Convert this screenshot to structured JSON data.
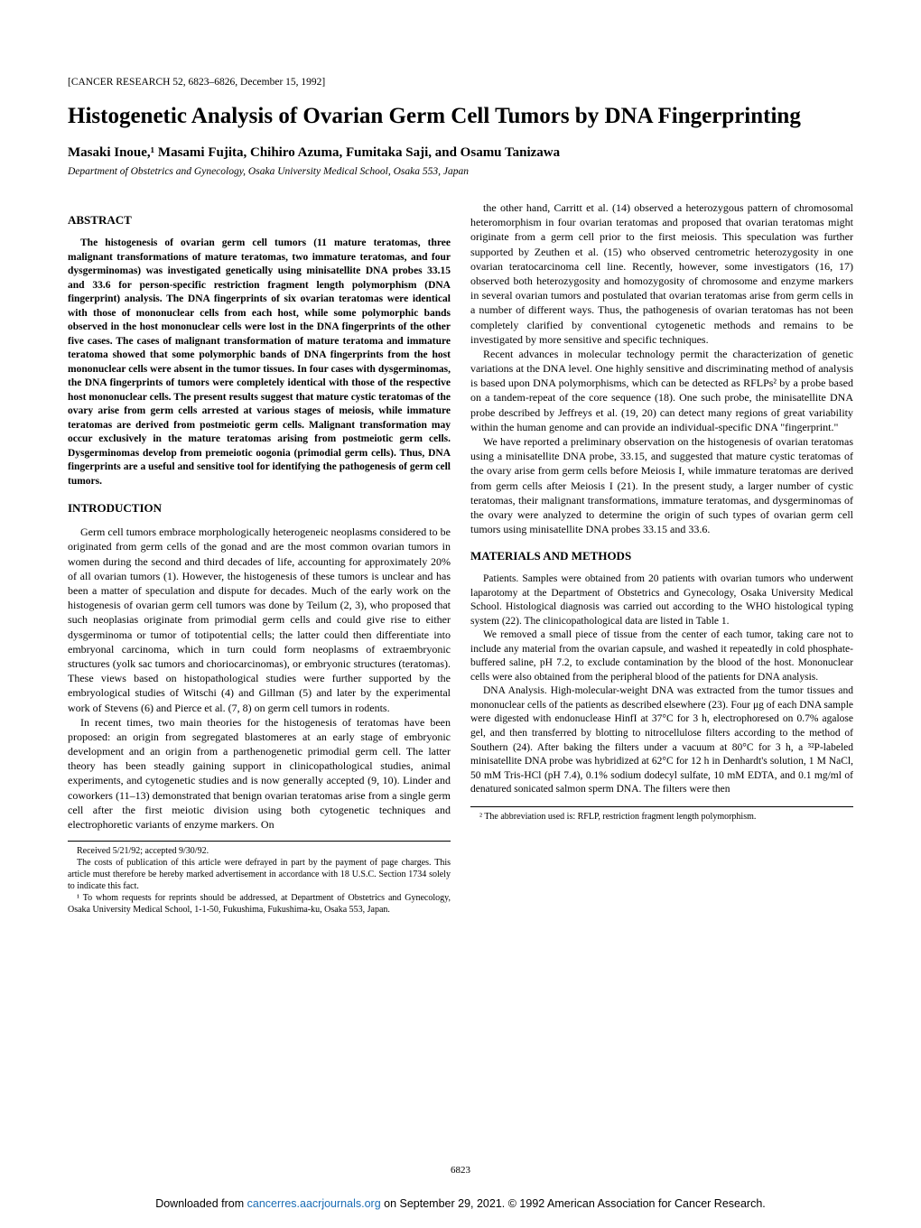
{
  "journal_ref": "[CANCER RESEARCH 52, 6823–6826, December 15, 1992]",
  "title": "Histogenetic Analysis of Ovarian Germ Cell Tumors by DNA Fingerprinting",
  "authors": "Masaki Inoue,¹ Masami Fujita, Chihiro Azuma, Fumitaka Saji, and Osamu Tanizawa",
  "affiliation": "Department of Obstetrics and Gynecology, Osaka University Medical School, Osaka 553, Japan",
  "sections": {
    "abstract_heading": "ABSTRACT",
    "abstract": "The histogenesis of ovarian germ cell tumors (11 mature teratomas, three malignant transformations of mature teratomas, two immature teratomas, and four dysgerminomas) was investigated genetically using minisatellite DNA probes 33.15 and 33.6 for person-specific restriction fragment length polymorphism (DNA fingerprint) analysis. The DNA fingerprints of six ovarian teratomas were identical with those of mononuclear cells from each host, while some polymorphic bands observed in the host mononuclear cells were lost in the DNA fingerprints of the other five cases. The cases of malignant transformation of mature teratoma and immature teratoma showed that some polymorphic bands of DNA fingerprints from the host mononuclear cells were absent in the tumor tissues. In four cases with dysgerminomas, the DNA fingerprints of tumors were completely identical with those of the respective host mononuclear cells. The present results suggest that mature cystic teratomas of the ovary arise from germ cells arrested at various stages of meiosis, while immature teratomas are derived from postmeiotic germ cells. Malignant transformation may occur exclusively in the mature teratomas arising from postmeiotic germ cells. Dysgerminomas develop from premeiotic oogonia (primodial germ cells). Thus, DNA fingerprints are a useful and sensitive tool for identifying the pathogenesis of germ cell tumors.",
    "intro_heading": "INTRODUCTION",
    "intro_p1": "Germ cell tumors embrace morphologically heterogeneic neoplasms considered to be originated from germ cells of the gonad and are the most common ovarian tumors in women during the second and third decades of life, accounting for approximately 20% of all ovarian tumors (1). However, the histogenesis of these tumors is unclear and has been a matter of speculation and dispute for decades. Much of the early work on the histogenesis of ovarian germ cell tumors was done by Teilum (2, 3), who proposed that such neoplasias originate from primodial germ cells and could give rise to either dysgerminoma or tumor of totipotential cells; the latter could then differentiate into embryonal carcinoma, which in turn could form neoplasms of extraembryonic structures (yolk sac tumors and choriocarcinomas), or embryonic structures (teratomas). These views based on histopathological studies were further supported by the embryological studies of Witschi (4) and Gillman (5) and later by the experimental work of Stevens (6) and Pierce et al. (7, 8) on germ cell tumors in rodents.",
    "intro_p2": "In recent times, two main theories for the histogenesis of teratomas have been proposed: an origin from segregated blastomeres at an early stage of embryonic development and an origin from a parthenogenetic primodial germ cell. The latter theory has been steadly gaining support in clinicopathological studies, animal experiments, and cytogenetic studies and is now generally accepted (9, 10). Linder and coworkers (11–13) demonstrated that benign ovarian teratomas arise from a single germ cell after the first meiotic division using both cytogenetic techniques and electrophoretic variants of enzyme markers. On",
    "col2_p1": "the other hand, Carritt et al. (14) observed a heterozygous pattern of chromosomal heteromorphism in four ovarian teratomas and proposed that ovarian teratomas might originate from a germ cell prior to the first meiosis. This speculation was further supported by Zeuthen et al. (15) who observed centrometric heterozygosity in one ovarian teratocarcinoma cell line. Recently, however, some investigators (16, 17) observed both heterozygosity and homozygosity of chromosome and enzyme markers in several ovarian tumors and postulated that ovarian teratomas arise from germ cells in a number of different ways. Thus, the pathogenesis of ovarian teratomas has not been completely clarified by conventional cytogenetic methods and remains to be investigated by more sensitive and specific techniques.",
    "col2_p2": "Recent advances in molecular technology permit the characterization of genetic variations at the DNA level. One highly sensitive and discriminating method of analysis is based upon DNA polymorphisms, which can be detected as RFLPs² by a probe based on a tandem-repeat of the core sequence (18). One such probe, the minisatellite DNA probe described by Jeffreys et al. (19, 20) can detect many regions of great variability within the human genome and can provide an individual-specific DNA \"fingerprint.\"",
    "col2_p3": "We have reported a preliminary observation on the histogenesis of ovarian teratomas using a minisatellite DNA probe, 33.15, and suggested that mature cystic teratomas of the ovary arise from germ cells before Meiosis I, while immature teratomas are derived from germ cells after Meiosis I (21). In the present study, a larger number of cystic teratomas, their malignant transformations, immature teratomas, and dysgerminomas of the ovary were analyzed to determine the origin of such types of ovarian germ cell tumors using minisatellite DNA probes 33.15 and 33.6.",
    "methods_heading": "MATERIALS AND METHODS",
    "methods_p1": "Patients. Samples were obtained from 20 patients with ovarian tumors who underwent laparotomy at the Department of Obstetrics and Gynecology, Osaka University Medical School. Histological diagnosis was carried out according to the WHO histological typing system (22). The clinicopathological data are listed in Table 1.",
    "methods_p2": "We removed a small piece of tissue from the center of each tumor, taking care not to include any material from the ovarian capsule, and washed it repeatedly in cold phosphate-buffered saline, pH 7.2, to exclude contamination by the blood of the host. Mononuclear cells were also obtained from the peripheral blood of the patients for DNA analysis.",
    "methods_p3": "DNA Analysis. High-molecular-weight DNA was extracted from the tumor tissues and mononuclear cells of the patients as described elsewhere (23). Four μg of each DNA sample were digested with endonuclease HinfI at 37°C for 3 h, electrophoresed on 0.7% agalose gel, and then transferred by blotting to nitrocellulose filters according to the method of Southern (24). After baking the filters under a vacuum at 80°C for 3 h, a ³²P-labeled minisatellite DNA probe was hybridized at 62°C for 12 h in Denhardt's solution, 1 M NaCl, 50 mM Tris-HCl (pH 7.4), 0.1% sodium dodecyl sulfate, 10 mM EDTA, and 0.1 mg/ml of denatured sonicated salmon sperm DNA. The filters were then"
  },
  "footnotes": {
    "received": "Received 5/21/92; accepted 9/30/92.",
    "costs": "The costs of publication of this article were defrayed in part by the payment of page charges. This article must therefore be hereby marked advertisement in accordance with 18 U.S.C. Section 1734 solely to indicate this fact.",
    "corresponding": "¹ To whom requests for reprints should be addressed, at Department of Obstetrics and Gynecology, Osaka University Medical School, 1-1-50, Fukushima, Fukushima-ku, Osaka 553, Japan.",
    "abbreviation": "² The abbreviation used is: RFLP, restriction fragment length polymorphism."
  },
  "page_number": "6823",
  "download": {
    "prefix": "Downloaded from ",
    "link": "cancerres.aacrjournals.org",
    "suffix": " on September 29, 2021. © 1992 American Association for Cancer Research."
  },
  "colors": {
    "background": "#ffffff",
    "text": "#000000",
    "link": "#1a6db5"
  },
  "typography": {
    "title_fontsize": 25,
    "authors_fontsize": 15,
    "body_fontsize": 12,
    "abstract_fontsize": 11.5,
    "footnote_fontsize": 10,
    "font_family": "Times New Roman"
  }
}
